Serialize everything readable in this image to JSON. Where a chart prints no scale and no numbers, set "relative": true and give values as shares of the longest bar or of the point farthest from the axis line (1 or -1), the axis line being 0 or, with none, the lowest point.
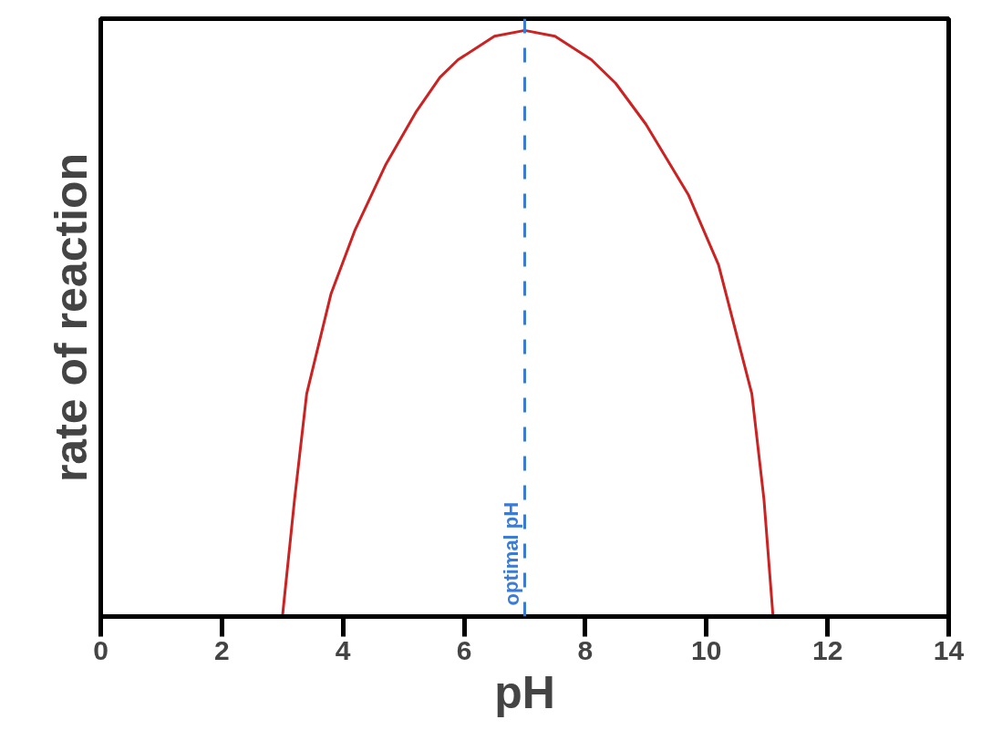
{
  "chart_data": {
    "type": "line",
    "xlabel": "pH",
    "ylabel": "rate of reaction",
    "relative": true,
    "xlim": [
      0,
      14
    ],
    "xticks": [
      0,
      2,
      4,
      6,
      8,
      10,
      12,
      14
    ],
    "grid": false,
    "marker": "none",
    "line_style": "solid",
    "x": [
      3,
      3.2,
      3.4,
      3.8,
      4.2,
      4.7,
      5.2,
      5.6,
      5.9,
      6.5,
      7,
      7.5,
      8.1,
      8.5,
      9,
      9.7,
      10.2,
      10.75,
      10.95,
      11.1
    ],
    "series": [
      {
        "color": "#cc2222",
        "values": [
          0,
          0.2,
          0.38,
          0.55,
          0.66,
          0.77,
          0.86,
          0.92,
          0.95,
          0.99,
          1,
          0.99,
          0.95,
          0.91,
          0.84,
          0.72,
          0.6,
          0.38,
          0.2,
          0
        ]
      }
    ],
    "ref_lines": [
      {
        "axis": "x",
        "value": 7,
        "label": "optimal pH",
        "color": "#3a7bd5",
        "line_style": "dashed"
      }
    ]
  }
}
